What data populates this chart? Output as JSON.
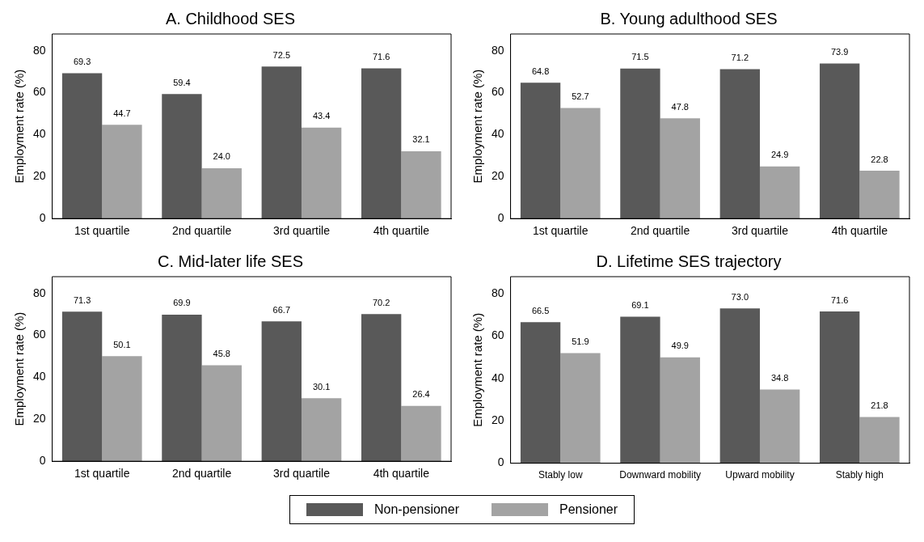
{
  "chart_data": [
    {
      "type": "bar",
      "title": "A. Childhood SES",
      "ylabel": "Employment rate (%)",
      "categories": [
        "1st quartile",
        "2nd quartile",
        "3rd quartile",
        "4th quartile"
      ],
      "series": [
        {
          "color": "#595959",
          "values": [
            69.3,
            59.4,
            72.5,
            71.6
          ],
          "value_labels": [
            "69.3",
            "59.4",
            "72.5",
            "71.6"
          ]
        },
        {
          "color": "#a3a3a3",
          "values": [
            44.7,
            24,
            43.4,
            32.1
          ],
          "value_labels": [
            "44.7",
            "24.0",
            "43.4",
            "32.1"
          ]
        }
      ],
      "ylim": [
        0,
        88
      ],
      "yticks": [
        0,
        20,
        40,
        60,
        80
      ],
      "grid": false
    },
    {
      "type": "bar",
      "title": "B. Young adulthood SES",
      "ylabel": "Employment rate (%)",
      "categories": [
        "1st quartile",
        "2nd quartile",
        "3rd quartile",
        "4th quartile"
      ],
      "series": [
        {
          "color": "#595959",
          "values": [
            64.8,
            71.5,
            71.2,
            73.9
          ],
          "value_labels": [
            "64.8",
            "71.5",
            "71.2",
            "73.9"
          ]
        },
        {
          "color": "#a3a3a3",
          "values": [
            52.7,
            47.8,
            24.9,
            22.8
          ],
          "value_labels": [
            "52.7",
            "47.8",
            "24.9",
            "22.8"
          ]
        }
      ],
      "ylim": [
        0,
        88
      ],
      "yticks": [
        0,
        20,
        40,
        60,
        80
      ],
      "grid": false
    },
    {
      "type": "bar",
      "title": "C. Mid-later life SES",
      "ylabel": "Employment rate (%)",
      "categories": [
        "1st quartile",
        "2nd quartile",
        "3rd quartile",
        "4th quartile"
      ],
      "series": [
        {
          "color": "#595959",
          "values": [
            71.3,
            69.9,
            66.7,
            70.2
          ],
          "value_labels": [
            "71.3",
            "69.9",
            "66.7",
            "70.2"
          ]
        },
        {
          "color": "#a3a3a3",
          "values": [
            50.1,
            45.8,
            30.1,
            26.4
          ],
          "value_labels": [
            "50.1",
            "45.8",
            "30.1",
            "26.4"
          ]
        }
      ],
      "ylim": [
        0,
        88
      ],
      "yticks": [
        0,
        20,
        40,
        60,
        80
      ],
      "grid": false
    },
    {
      "type": "bar",
      "title": "D. Lifetime SES trajectory",
      "ylabel": "Employment rate (%)",
      "categories": [
        "Stably low",
        "Downward mobility",
        "Upward mobility",
        "Stably high"
      ],
      "series": [
        {
          "name": "Non-pensioner",
          "color": "#595959",
          "values": [
            66.5,
            69.1,
            73,
            71.6
          ],
          "value_labels": [
            "66.5",
            "69.1",
            "73.0",
            "71.6"
          ]
        },
        {
          "name": "Pensioner",
          "color": "#a3a3a3",
          "values": [
            51.9,
            49.9,
            34.8,
            21.8
          ],
          "value_labels": [
            "51.9",
            "49.9",
            "34.8",
            "21.8"
          ]
        }
      ],
      "ylim": [
        0,
        88
      ],
      "yticks": [
        0,
        20,
        40,
        60,
        80
      ],
      "grid": false,
      "legend": "bottom"
    }
  ]
}
